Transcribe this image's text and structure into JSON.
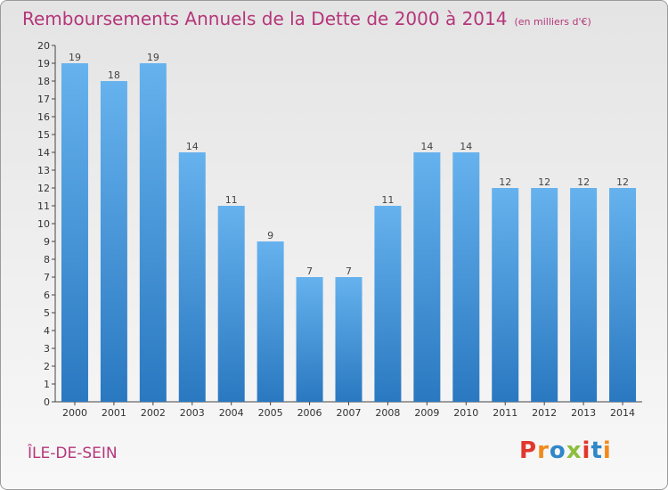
{
  "header": {
    "title": "Remboursements Annuels de la Dette de 2000 à 2014",
    "unit": "(en milliers d'€)"
  },
  "footer": {
    "place": "ÎLE-DE-SEIN",
    "logo": "Proxiti"
  },
  "colors": {
    "title": "#b5367a",
    "bar_top": "#66b2ee",
    "bar_bottom": "#2a78c0",
    "logo_letters": [
      "#e2372c",
      "#f18a1c",
      "#2e87c8",
      "#8cbf3f",
      "#e2372c",
      "#2e87c8",
      "#f18a1c"
    ]
  },
  "chart_data": {
    "type": "bar",
    "title": "Remboursements Annuels de la Dette de 2000 à 2014",
    "categories": [
      "2000",
      "2001",
      "2002",
      "2003",
      "2004",
      "2005",
      "2006",
      "2007",
      "2008",
      "2009",
      "2010",
      "2011",
      "2012",
      "2013",
      "2014"
    ],
    "values": [
      19,
      18,
      19,
      14,
      11,
      9,
      7,
      7,
      11,
      14,
      14,
      12,
      12,
      12,
      12
    ],
    "value_labels": [
      "19",
      "18",
      "19",
      "14",
      "11",
      "9",
      "7",
      "7",
      "11",
      "14",
      "14",
      "12",
      "12",
      "12",
      "12"
    ],
    "yticks": [
      "0",
      "1",
      "2",
      "3",
      "4",
      "5",
      "6",
      "7",
      "8",
      "9",
      "10",
      "11",
      "12",
      "13",
      "14",
      "15",
      "16",
      "17",
      "18",
      "19",
      "20"
    ],
    "ylim": [
      0,
      20
    ],
    "xlabel": "",
    "ylabel": "",
    "grid": false,
    "legend": "none"
  }
}
